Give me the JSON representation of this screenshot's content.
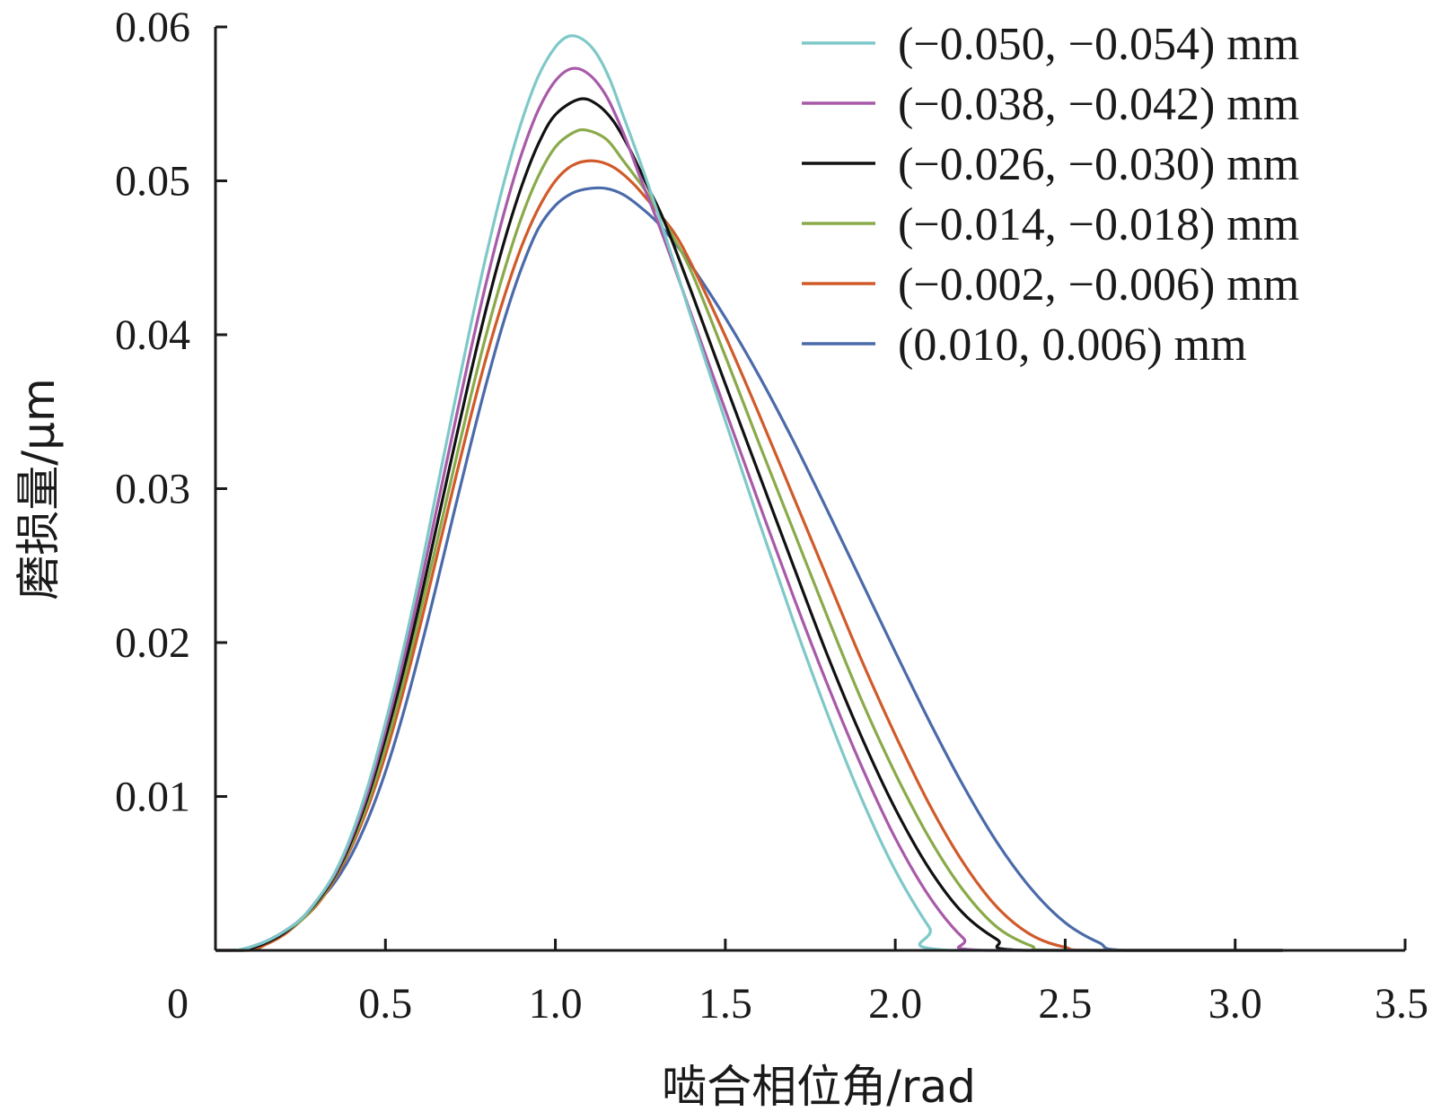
{
  "chart_data": {
    "type": "line",
    "title": "",
    "xlabel": "啮合相位角/rad",
    "ylabel": "磨损量/μm",
    "xlim": [
      0,
      3.5
    ],
    "ylim": [
      0,
      0.06
    ],
    "x_ticks": [
      "0",
      "0.5",
      "1.0",
      "1.5",
      "2.0",
      "2.5",
      "3.0",
      "3.5"
    ],
    "y_ticks": [
      "0.01",
      "0.02",
      "0.03",
      "0.04",
      "0.05",
      "0.06"
    ],
    "grid": false,
    "legend_position": "top-right",
    "series": [
      {
        "name": "(−0.050, −0.054) mm",
        "color": "#7fc8c8",
        "points": [
          [
            0,
            0
          ],
          [
            0.06,
            0
          ],
          [
            0.1,
            0.0002
          ],
          [
            0.15,
            0.0006
          ],
          [
            0.2,
            0.0012
          ],
          [
            0.25,
            0.002
          ],
          [
            0.3,
            0.0033
          ],
          [
            0.35,
            0.005
          ],
          [
            0.4,
            0.0075
          ],
          [
            0.45,
            0.0108
          ],
          [
            0.5,
            0.0148
          ],
          [
            0.55,
            0.0193
          ],
          [
            0.6,
            0.0243
          ],
          [
            0.65,
            0.0298
          ],
          [
            0.7,
            0.0352
          ],
          [
            0.75,
            0.0405
          ],
          [
            0.8,
            0.0455
          ],
          [
            0.85,
            0.05
          ],
          [
            0.9,
            0.0538
          ],
          [
            0.95,
            0.0568
          ],
          [
            1.0,
            0.0587
          ],
          [
            1.04,
            0.0594
          ],
          [
            1.08,
            0.0592
          ],
          [
            1.12,
            0.0583
          ],
          [
            1.16,
            0.0566
          ],
          [
            1.2,
            0.0542
          ],
          [
            1.25,
            0.0512
          ],
          [
            1.3,
            0.048
          ],
          [
            1.35,
            0.0446
          ],
          [
            1.4,
            0.0411
          ],
          [
            1.5,
            0.0344
          ],
          [
            1.6,
            0.0278
          ],
          [
            1.7,
            0.0214
          ],
          [
            1.8,
            0.0154
          ],
          [
            1.9,
            0.0099
          ],
          [
            2.0,
            0.0052
          ],
          [
            2.1,
            0.0015
          ],
          [
            2.16,
            0
          ],
          [
            3.14,
            0
          ]
        ]
      },
      {
        "name": "(−0.038, −0.042) mm",
        "color": "#a85aa8",
        "points": [
          [
            0,
            0
          ],
          [
            0.07,
            0
          ],
          [
            0.1,
            0.0002
          ],
          [
            0.15,
            0.0006
          ],
          [
            0.2,
            0.0012
          ],
          [
            0.25,
            0.002
          ],
          [
            0.3,
            0.0033
          ],
          [
            0.35,
            0.0049
          ],
          [
            0.4,
            0.0073
          ],
          [
            0.45,
            0.0104
          ],
          [
            0.5,
            0.0143
          ],
          [
            0.55,
            0.0186
          ],
          [
            0.6,
            0.0234
          ],
          [
            0.65,
            0.0286
          ],
          [
            0.7,
            0.0338
          ],
          [
            0.75,
            0.0389
          ],
          [
            0.8,
            0.0437
          ],
          [
            0.85,
            0.048
          ],
          [
            0.9,
            0.0517
          ],
          [
            0.95,
            0.0546
          ],
          [
            1.0,
            0.0565
          ],
          [
            1.05,
            0.0573
          ],
          [
            1.1,
            0.0569
          ],
          [
            1.15,
            0.0555
          ],
          [
            1.2,
            0.0531
          ],
          [
            1.25,
            0.0502
          ],
          [
            1.3,
            0.0474
          ],
          [
            1.35,
            0.0444
          ],
          [
            1.4,
            0.0413
          ],
          [
            1.5,
            0.0351
          ],
          [
            1.6,
            0.029
          ],
          [
            1.7,
            0.023
          ],
          [
            1.8,
            0.0173
          ],
          [
            1.9,
            0.012
          ],
          [
            2.0,
            0.0073
          ],
          [
            2.1,
            0.0035
          ],
          [
            2.2,
            0.0008
          ],
          [
            2.27,
            0
          ],
          [
            3.14,
            0
          ]
        ]
      },
      {
        "name": "(−0.026, −0.030) mm",
        "color": "#111111",
        "points": [
          [
            0,
            0
          ],
          [
            0.08,
            0
          ],
          [
            0.1,
            0.0001
          ],
          [
            0.15,
            0.0005
          ],
          [
            0.2,
            0.0011
          ],
          [
            0.25,
            0.002
          ],
          [
            0.3,
            0.0032
          ],
          [
            0.35,
            0.0048
          ],
          [
            0.4,
            0.0071
          ],
          [
            0.45,
            0.0101
          ],
          [
            0.5,
            0.0138
          ],
          [
            0.55,
            0.0179
          ],
          [
            0.6,
            0.0225
          ],
          [
            0.65,
            0.0275
          ],
          [
            0.7,
            0.0325
          ],
          [
            0.75,
            0.0374
          ],
          [
            0.8,
            0.042
          ],
          [
            0.85,
            0.0461
          ],
          [
            0.9,
            0.0496
          ],
          [
            0.95,
            0.0524
          ],
          [
            1.0,
            0.0543
          ],
          [
            1.07,
            0.0553
          ],
          [
            1.12,
            0.055
          ],
          [
            1.17,
            0.0539
          ],
          [
            1.22,
            0.052
          ],
          [
            1.27,
            0.0497
          ],
          [
            1.32,
            0.0474
          ],
          [
            1.4,
            0.0428
          ],
          [
            1.5,
            0.0368
          ],
          [
            1.6,
            0.0309
          ],
          [
            1.7,
            0.025
          ],
          [
            1.8,
            0.0192
          ],
          [
            1.9,
            0.0139
          ],
          [
            2.0,
            0.0092
          ],
          [
            2.1,
            0.0053
          ],
          [
            2.2,
            0.0024
          ],
          [
            2.3,
            0.0007
          ],
          [
            2.38,
            0
          ],
          [
            3.14,
            0
          ]
        ]
      },
      {
        "name": "(−0.014, −0.018) mm",
        "color": "#8aaa4a",
        "points": [
          [
            0,
            0
          ],
          [
            0.09,
            0
          ],
          [
            0.1,
            0.0001
          ],
          [
            0.15,
            0.0005
          ],
          [
            0.2,
            0.0011
          ],
          [
            0.25,
            0.0019
          ],
          [
            0.3,
            0.0031
          ],
          [
            0.35,
            0.0047
          ],
          [
            0.4,
            0.0069
          ],
          [
            0.45,
            0.0097
          ],
          [
            0.5,
            0.0132
          ],
          [
            0.55,
            0.0172
          ],
          [
            0.6,
            0.0217
          ],
          [
            0.65,
            0.0264
          ],
          [
            0.7,
            0.0312
          ],
          [
            0.75,
            0.0359
          ],
          [
            0.8,
            0.0403
          ],
          [
            0.85,
            0.0442
          ],
          [
            0.9,
            0.0476
          ],
          [
            0.95,
            0.0503
          ],
          [
            1.0,
            0.0522
          ],
          [
            1.05,
            0.0531
          ],
          [
            1.09,
            0.0533
          ],
          [
            1.15,
            0.0527
          ],
          [
            1.2,
            0.0513
          ],
          [
            1.27,
            0.0492
          ],
          [
            1.33,
            0.047
          ],
          [
            1.4,
            0.0441
          ],
          [
            1.5,
            0.0386
          ],
          [
            1.6,
            0.0329
          ],
          [
            1.7,
            0.0273
          ],
          [
            1.8,
            0.0217
          ],
          [
            1.9,
            0.0163
          ],
          [
            2.0,
            0.0115
          ],
          [
            2.1,
            0.0073
          ],
          [
            2.2,
            0.0039
          ],
          [
            2.3,
            0.0015
          ],
          [
            2.4,
            0.0003
          ],
          [
            2.48,
            0
          ],
          [
            3.14,
            0
          ]
        ]
      },
      {
        "name": "(−0.002, −0.006) mm",
        "color": "#d05a2a",
        "points": [
          [
            0,
            0
          ],
          [
            0.1,
            0
          ],
          [
            0.15,
            0.0004
          ],
          [
            0.2,
            0.001
          ],
          [
            0.25,
            0.0019
          ],
          [
            0.3,
            0.003
          ],
          [
            0.35,
            0.0046
          ],
          [
            0.4,
            0.0067
          ],
          [
            0.45,
            0.0094
          ],
          [
            0.5,
            0.0127
          ],
          [
            0.55,
            0.0166
          ],
          [
            0.6,
            0.0209
          ],
          [
            0.65,
            0.0255
          ],
          [
            0.7,
            0.0301
          ],
          [
            0.75,
            0.0346
          ],
          [
            0.8,
            0.0388
          ],
          [
            0.85,
            0.0425
          ],
          [
            0.9,
            0.0457
          ],
          [
            0.95,
            0.0482
          ],
          [
            1.0,
            0.05
          ],
          [
            1.05,
            0.051
          ],
          [
            1.11,
            0.0513
          ],
          [
            1.17,
            0.0509
          ],
          [
            1.23,
            0.0498
          ],
          [
            1.3,
            0.048
          ],
          [
            1.35,
            0.0466
          ],
          [
            1.4,
            0.0446
          ],
          [
            1.5,
            0.0399
          ],
          [
            1.6,
            0.0348
          ],
          [
            1.7,
            0.0295
          ],
          [
            1.8,
            0.0242
          ],
          [
            1.9,
            0.0189
          ],
          [
            2.0,
            0.014
          ],
          [
            2.1,
            0.0095
          ],
          [
            2.2,
            0.0057
          ],
          [
            2.3,
            0.0028
          ],
          [
            2.4,
            0.001
          ],
          [
            2.5,
            0.0002
          ],
          [
            2.59,
            0
          ],
          [
            3.14,
            0
          ]
        ]
      },
      {
        "name": "(0.010, 0.006) mm",
        "color": "#4a6aaa",
        "points": [
          [
            0,
            0
          ],
          [
            0.06,
            0
          ],
          [
            0.1,
            0.0002
          ],
          [
            0.15,
            0.0006
          ],
          [
            0.2,
            0.0012
          ],
          [
            0.25,
            0.002
          ],
          [
            0.3,
            0.0031
          ],
          [
            0.35,
            0.0044
          ],
          [
            0.4,
            0.0062
          ],
          [
            0.45,
            0.0086
          ],
          [
            0.5,
            0.0116
          ],
          [
            0.55,
            0.0152
          ],
          [
            0.6,
            0.0193
          ],
          [
            0.65,
            0.0237
          ],
          [
            0.7,
            0.0283
          ],
          [
            0.75,
            0.0328
          ],
          [
            0.8,
            0.0371
          ],
          [
            0.85,
            0.041
          ],
          [
            0.9,
            0.0443
          ],
          [
            0.95,
            0.0469
          ],
          [
            1.0,
            0.0484
          ],
          [
            1.05,
            0.0492
          ],
          [
            1.1,
            0.0495
          ],
          [
            1.15,
            0.0495
          ],
          [
            1.2,
            0.0491
          ],
          [
            1.25,
            0.0483
          ],
          [
            1.3,
            0.0473
          ],
          [
            1.35,
            0.046
          ],
          [
            1.4,
            0.0445
          ],
          [
            1.5,
            0.0411
          ],
          [
            1.6,
            0.0373
          ],
          [
            1.7,
            0.0331
          ],
          [
            1.8,
            0.0286
          ],
          [
            1.9,
            0.024
          ],
          [
            2.0,
            0.0194
          ],
          [
            2.1,
            0.0149
          ],
          [
            2.2,
            0.0107
          ],
          [
            2.3,
            0.007
          ],
          [
            2.4,
            0.004
          ],
          [
            2.5,
            0.0018
          ],
          [
            2.6,
            0.0005
          ],
          [
            2.68,
            0
          ],
          [
            3.14,
            0
          ]
        ]
      }
    ]
  }
}
